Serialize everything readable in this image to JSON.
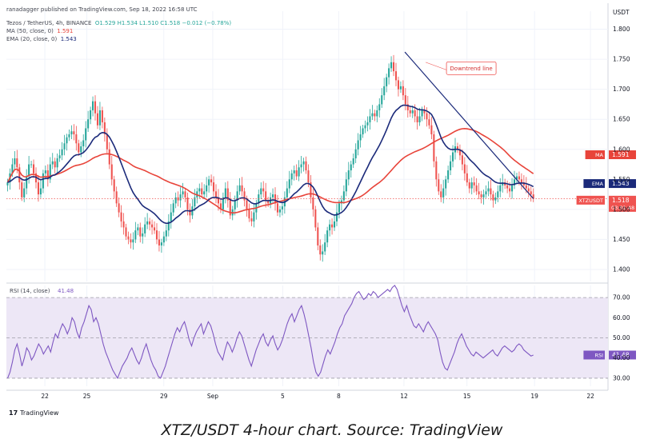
{
  "header": {
    "published": "ranadagger published on TradingView.com, Sep 18, 2022 16:58 UTC",
    "symbol_line": "Tezos / TetherUS, 4h, BINANCE",
    "ohlc": "O1.529  H1.534  L1.510  C1.518  −0.012 (−0.78%)",
    "ma_line_label": "MA (50, close, 0)",
    "ma_line_value": "1.591",
    "ema_line_label": "EMA (20, close, 0)",
    "ema_line_value": "1.543"
  },
  "caption": "XTZ/USDT 4-hour chart. Source: TradingView",
  "logo_text": "TradingView",
  "colors": {
    "up": "#26a69a",
    "down": "#ef5350",
    "ma": "#e8443a",
    "ema": "#1b2a7a",
    "rsi": "#7e57c2",
    "rsi_band": "#ede7f6",
    "trendline": "#1b2a7a",
    "price_line": "#ef5350"
  },
  "chart_data": [
    {
      "type": "candlestick",
      "title": "Tezos / TetherUS, 4h, BINANCE",
      "y_axis_label": "USDT",
      "ylim": [
        1.38,
        1.83
      ],
      "yticks": [
        "1.800",
        "1.750",
        "1.700",
        "1.650",
        "1.600",
        "1.550",
        "1.500",
        "1.450",
        "1.400"
      ],
      "xticks": [
        {
          "label": "22",
          "bar": 16
        },
        {
          "label": "25",
          "bar": 34
        },
        {
          "label": "29",
          "bar": 67
        },
        {
          "label": "Sep",
          "bar": 88
        },
        {
          "label": "5",
          "bar": 118
        },
        {
          "label": "8",
          "bar": 142
        },
        {
          "label": "12",
          "bar": 170
        },
        {
          "label": "15",
          "bar": 197
        },
        {
          "label": "19",
          "bar": 226
        },
        {
          "label": "22",
          "bar": 250
        }
      ],
      "bar_count_visible": 258,
      "series_close": [
        1.545,
        1.56,
        1.575,
        1.585,
        1.57,
        1.545,
        1.52,
        1.535,
        1.555,
        1.575,
        1.575,
        1.56,
        1.545,
        1.525,
        1.535,
        1.56,
        1.565,
        1.55,
        1.575,
        1.58,
        1.57,
        1.585,
        1.59,
        1.6,
        1.61,
        1.62,
        1.625,
        1.63,
        1.625,
        1.61,
        1.595,
        1.605,
        1.615,
        1.635,
        1.65,
        1.665,
        1.68,
        1.66,
        1.64,
        1.665,
        1.645,
        1.625,
        1.6,
        1.575,
        1.55,
        1.53,
        1.51,
        1.495,
        1.48,
        1.47,
        1.455,
        1.45,
        1.445,
        1.45,
        1.465,
        1.47,
        1.455,
        1.46,
        1.475,
        1.48,
        1.475,
        1.47,
        1.465,
        1.45,
        1.44,
        1.445,
        1.455,
        1.465,
        1.48,
        1.495,
        1.51,
        1.52,
        1.515,
        1.525,
        1.53,
        1.52,
        1.5,
        1.49,
        1.505,
        1.52,
        1.53,
        1.535,
        1.525,
        1.53,
        1.54,
        1.55,
        1.545,
        1.53,
        1.52,
        1.51,
        1.5,
        1.52,
        1.535,
        1.515,
        1.49,
        1.5,
        1.515,
        1.53,
        1.54,
        1.53,
        1.515,
        1.5,
        1.485,
        1.48,
        1.495,
        1.51,
        1.525,
        1.535,
        1.53,
        1.515,
        1.51,
        1.52,
        1.525,
        1.51,
        1.495,
        1.5,
        1.505,
        1.52,
        1.535,
        1.55,
        1.56,
        1.565,
        1.555,
        1.57,
        1.575,
        1.58,
        1.565,
        1.545,
        1.52,
        1.5,
        1.47,
        1.44,
        1.425,
        1.43,
        1.445,
        1.465,
        1.475,
        1.47,
        1.48,
        1.495,
        1.51,
        1.515,
        1.53,
        1.55,
        1.565,
        1.575,
        1.585,
        1.6,
        1.615,
        1.625,
        1.635,
        1.64,
        1.645,
        1.655,
        1.66,
        1.655,
        1.665,
        1.675,
        1.69,
        1.705,
        1.72,
        1.735,
        1.745,
        1.73,
        1.715,
        1.7,
        1.705,
        1.69,
        1.675,
        1.665,
        1.66,
        1.665,
        1.655,
        1.645,
        1.655,
        1.665,
        1.66,
        1.65,
        1.64,
        1.625,
        1.58,
        1.55,
        1.53,
        1.52,
        1.535,
        1.55,
        1.565,
        1.58,
        1.595,
        1.605,
        1.6,
        1.59,
        1.575,
        1.56,
        1.545,
        1.535,
        1.545,
        1.54,
        1.53,
        1.525,
        1.52,
        1.525,
        1.53,
        1.535,
        1.525,
        1.515,
        1.52,
        1.53,
        1.54,
        1.545,
        1.54,
        1.535,
        1.53,
        1.54,
        1.55,
        1.555,
        1.55,
        1.545,
        1.54,
        1.535,
        1.53,
        1.525,
        1.518
      ],
      "series": [
        {
          "name": "MA (50, close, 0)",
          "last_value": 1.591
        },
        {
          "name": "EMA (20, close, 0)",
          "last_value": 1.543
        },
        {
          "name": "XTZUSDT",
          "last_value": 1.518,
          "countdown": "03:01:48"
        }
      ],
      "price_labels": [
        {
          "tag": "MA",
          "value": "1.591"
        },
        {
          "tag": "EMA",
          "value": "1.543"
        },
        {
          "tag": "XTZUSDT",
          "value": "1.518",
          "sub": "03:01:48"
        }
      ],
      "annotation": "Downtrend line",
      "trendline": {
        "from": {
          "bar": 170,
          "price": 1.762
        },
        "to": {
          "bar": 226,
          "price": 1.518
        }
      }
    },
    {
      "type": "line",
      "title": "RSI (14, close)",
      "last_value": "41.48",
      "ylim": [
        26,
        76
      ],
      "yticks": [
        "70.00",
        "60.00",
        "50.00",
        "40.00",
        "30.00"
      ],
      "band": [
        30,
        70
      ],
      "price_label": {
        "tag": "RSI",
        "value": "41.48"
      },
      "values": [
        30,
        33,
        38,
        44,
        47,
        42,
        36,
        40,
        45,
        43,
        39,
        41,
        44,
        47,
        45,
        42,
        44,
        46,
        43,
        48,
        52,
        50,
        54,
        57,
        55,
        52,
        55,
        60,
        58,
        53,
        50,
        55,
        58,
        62,
        66,
        64,
        58,
        60,
        57,
        52,
        47,
        43,
        40,
        37,
        34,
        32,
        30,
        33,
        36,
        38,
        40,
        43,
        45,
        42,
        39,
        37,
        40,
        44,
        47,
        43,
        39,
        36,
        34,
        31,
        30,
        33,
        36,
        40,
        44,
        48,
        52,
        55,
        53,
        56,
        58,
        54,
        49,
        46,
        50,
        53,
        55,
        57,
        52,
        55,
        58,
        56,
        52,
        47,
        43,
        41,
        39,
        44,
        48,
        46,
        43,
        46,
        50,
        53,
        51,
        47,
        43,
        39,
        36,
        40,
        44,
        47,
        50,
        52,
        48,
        46,
        49,
        51,
        47,
        44,
        46,
        49,
        53,
        57,
        60,
        62,
        58,
        61,
        64,
        66,
        62,
        57,
        51,
        45,
        38,
        33,
        31,
        33,
        37,
        41,
        44,
        42,
        45,
        48,
        52,
        55,
        57,
        61,
        63,
        65,
        67,
        70,
        72,
        73,
        71,
        69,
        70,
        72,
        71,
        73,
        72,
        70,
        71,
        72,
        73,
        74,
        73,
        75,
        76,
        74,
        70,
        66,
        63,
        66,
        62,
        59,
        56,
        55,
        57,
        55,
        53,
        56,
        58,
        56,
        54,
        52,
        49,
        43,
        38,
        35,
        34,
        37,
        40,
        43,
        47,
        50,
        52,
        49,
        46,
        44,
        42,
        41,
        43,
        42,
        41,
        40,
        41,
        42,
        43,
        44,
        42,
        41,
        43,
        45,
        46,
        45,
        44,
        43,
        44,
        46,
        47,
        46,
        44,
        43,
        42,
        41,
        41.48
      ]
    }
  ]
}
